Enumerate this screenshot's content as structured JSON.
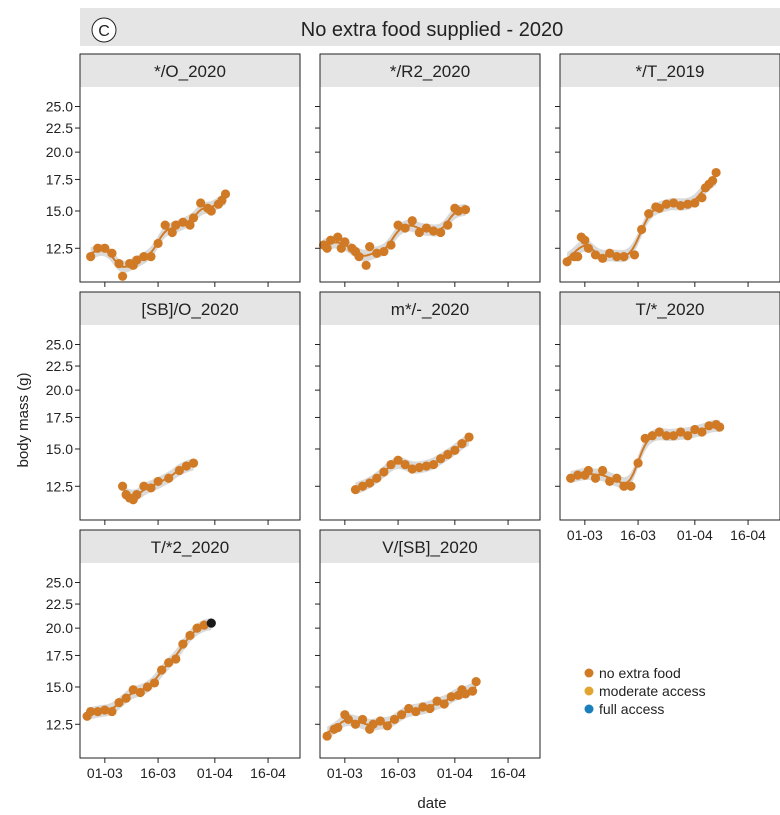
{
  "figure": {
    "panel_letter": "C",
    "title": "No extra food supplied - 2020",
    "xlabel": "date",
    "ylabel": "body mass (g)"
  },
  "legend": {
    "placement": "bottom-right",
    "entries": [
      {
        "label": "no extra food",
        "color": "#d07a26"
      },
      {
        "label": "moderate access",
        "color": "#e2a532"
      },
      {
        "label": "full access",
        "color": "#1b7fbd"
      }
    ]
  },
  "chart_data": {
    "type": "scatter",
    "x_axis": {
      "type": "date",
      "ticks": [
        "01-03",
        "16-03",
        "01-04",
        "16-04"
      ],
      "range": [
        "2020-02-23",
        "2020-04-25"
      ]
    },
    "y_axis": {
      "scale": "log",
      "range": [
        10.6,
        27.5
      ],
      "ticks": [
        12.5,
        15.0,
        17.5,
        20.0,
        22.5,
        25.0
      ],
      "tick_labels": [
        "12.5",
        "15.0",
        "17.5",
        "20.0",
        "22.5",
        "25.0"
      ]
    },
    "colors": {
      "points": "#d07a26",
      "smooth_line": "#d07a26",
      "ribbon": "#d3d3d3",
      "strip": "#e5e5e5",
      "highlight": "#1a1a1a"
    },
    "panels": [
      {
        "title": "*/O_2020",
        "points": [
          [
            "2020-02-26",
            12.0
          ],
          [
            "2020-02-28",
            12.5
          ],
          [
            "2020-03-01",
            12.5
          ],
          [
            "2020-03-03",
            12.2
          ],
          [
            "2020-03-05",
            11.6
          ],
          [
            "2020-03-06",
            10.9
          ],
          [
            "2020-03-08",
            11.6
          ],
          [
            "2020-03-09",
            11.5
          ],
          [
            "2020-03-10",
            11.8
          ],
          [
            "2020-03-12",
            12.0
          ],
          [
            "2020-03-14",
            12.0
          ],
          [
            "2020-03-16",
            12.8
          ],
          [
            "2020-03-18",
            14.0
          ],
          [
            "2020-03-20",
            13.5
          ],
          [
            "2020-03-21",
            14.0
          ],
          [
            "2020-03-23",
            14.2
          ],
          [
            "2020-03-25",
            14.0
          ],
          [
            "2020-03-26",
            14.5
          ],
          [
            "2020-03-28",
            15.6
          ],
          [
            "2020-03-30",
            15.2
          ],
          [
            "2020-03-31",
            15.0
          ],
          [
            "2020-04-02",
            15.5
          ],
          [
            "2020-04-03",
            15.8
          ],
          [
            "2020-04-04",
            16.3
          ]
        ]
      },
      {
        "title": "*/R2_2020",
        "points": [
          [
            "2020-02-24",
            12.7
          ],
          [
            "2020-02-25",
            12.5
          ],
          [
            "2020-02-26",
            13.0
          ],
          [
            "2020-02-28",
            13.2
          ],
          [
            "2020-02-29",
            12.5
          ],
          [
            "2020-03-01",
            12.9
          ],
          [
            "2020-03-03",
            12.5
          ],
          [
            "2020-03-04",
            12.3
          ],
          [
            "2020-03-05",
            12.0
          ],
          [
            "2020-03-07",
            11.5
          ],
          [
            "2020-03-08",
            12.6
          ],
          [
            "2020-03-10",
            12.2
          ],
          [
            "2020-03-12",
            12.3
          ],
          [
            "2020-03-14",
            12.7
          ],
          [
            "2020-03-16",
            14.0
          ],
          [
            "2020-03-18",
            13.8
          ],
          [
            "2020-03-20",
            14.3
          ],
          [
            "2020-03-22",
            13.5
          ],
          [
            "2020-03-24",
            13.8
          ],
          [
            "2020-03-26",
            13.6
          ],
          [
            "2020-03-28",
            13.5
          ],
          [
            "2020-03-30",
            14.0
          ],
          [
            "2020-04-01",
            15.2
          ],
          [
            "2020-04-02",
            15.0
          ],
          [
            "2020-04-04",
            15.1
          ]
        ]
      },
      {
        "title": "*/T_2019",
        "points": [
          [
            "2020-02-25",
            11.7
          ],
          [
            "2020-02-27",
            12.0
          ],
          [
            "2020-02-28",
            12.0
          ],
          [
            "2020-02-29",
            13.2
          ],
          [
            "2020-03-01",
            13.0
          ],
          [
            "2020-03-02",
            12.5
          ],
          [
            "2020-03-04",
            12.1
          ],
          [
            "2020-03-06",
            11.9
          ],
          [
            "2020-03-08",
            12.2
          ],
          [
            "2020-03-10",
            12.0
          ],
          [
            "2020-03-12",
            12.0
          ],
          [
            "2020-03-15",
            12.1
          ],
          [
            "2020-03-17",
            13.7
          ],
          [
            "2020-03-19",
            14.8
          ],
          [
            "2020-03-21",
            15.3
          ],
          [
            "2020-03-22",
            15.2
          ],
          [
            "2020-03-24",
            15.5
          ],
          [
            "2020-03-26",
            15.6
          ],
          [
            "2020-03-28",
            15.4
          ],
          [
            "2020-03-30",
            15.5
          ],
          [
            "2020-04-01",
            15.6
          ],
          [
            "2020-04-03",
            16.0
          ],
          [
            "2020-04-04",
            16.8
          ],
          [
            "2020-04-05",
            17.1
          ],
          [
            "2020-04-06",
            17.4
          ],
          [
            "2020-04-07",
            18.1
          ]
        ]
      },
      {
        "title": "[SB]/O_2020",
        "points": [
          [
            "2020-03-06",
            12.5
          ],
          [
            "2020-03-07",
            12.0
          ],
          [
            "2020-03-08",
            11.8
          ],
          [
            "2020-03-09",
            11.7
          ],
          [
            "2020-03-10",
            12.0
          ],
          [
            "2020-03-12",
            12.5
          ],
          [
            "2020-03-14",
            12.4
          ],
          [
            "2020-03-16",
            12.8
          ],
          [
            "2020-03-19",
            13.0
          ],
          [
            "2020-03-22",
            13.5
          ],
          [
            "2020-03-24",
            13.8
          ],
          [
            "2020-03-26",
            14.0
          ]
        ]
      },
      {
        "title": "m*/-_2020",
        "points": [
          [
            "2020-03-04",
            12.3
          ],
          [
            "2020-03-06",
            12.5
          ],
          [
            "2020-03-08",
            12.7
          ],
          [
            "2020-03-10",
            13.0
          ],
          [
            "2020-03-12",
            13.4
          ],
          [
            "2020-03-14",
            13.9
          ],
          [
            "2020-03-16",
            14.2
          ],
          [
            "2020-03-18",
            13.9
          ],
          [
            "2020-03-20",
            13.6
          ],
          [
            "2020-03-22",
            13.7
          ],
          [
            "2020-03-24",
            13.8
          ],
          [
            "2020-03-26",
            13.9
          ],
          [
            "2020-03-28",
            14.3
          ],
          [
            "2020-03-30",
            14.6
          ],
          [
            "2020-04-01",
            14.9
          ],
          [
            "2020-04-03",
            15.4
          ],
          [
            "2020-04-05",
            15.9
          ]
        ]
      },
      {
        "title": "T/*_2020",
        "points": [
          [
            "2020-02-26",
            13.0
          ],
          [
            "2020-02-28",
            13.2
          ],
          [
            "2020-03-01",
            13.2
          ],
          [
            "2020-03-02",
            13.5
          ],
          [
            "2020-03-04",
            13.0
          ],
          [
            "2020-03-06",
            13.5
          ],
          [
            "2020-03-08",
            12.8
          ],
          [
            "2020-03-10",
            13.0
          ],
          [
            "2020-03-12",
            12.5
          ],
          [
            "2020-03-14",
            12.5
          ],
          [
            "2020-03-16",
            14.0
          ],
          [
            "2020-03-18",
            15.8
          ],
          [
            "2020-03-20",
            16.0
          ],
          [
            "2020-03-22",
            16.3
          ],
          [
            "2020-03-24",
            16.0
          ],
          [
            "2020-03-26",
            16.0
          ],
          [
            "2020-03-28",
            16.3
          ],
          [
            "2020-03-30",
            16.0
          ],
          [
            "2020-04-01",
            16.5
          ],
          [
            "2020-04-03",
            16.3
          ],
          [
            "2020-04-05",
            16.8
          ],
          [
            "2020-04-07",
            16.9
          ],
          [
            "2020-04-08",
            16.7
          ]
        ]
      },
      {
        "title": "T/*2_2020",
        "highlight_last": true,
        "points": [
          [
            "2020-02-25",
            13.0
          ],
          [
            "2020-02-26",
            13.3
          ],
          [
            "2020-02-28",
            13.3
          ],
          [
            "2020-03-01",
            13.4
          ],
          [
            "2020-03-03",
            13.3
          ],
          [
            "2020-03-05",
            13.9
          ],
          [
            "2020-03-07",
            14.2
          ],
          [
            "2020-03-09",
            14.8
          ],
          [
            "2020-03-11",
            14.6
          ],
          [
            "2020-03-13",
            15.0
          ],
          [
            "2020-03-15",
            15.3
          ],
          [
            "2020-03-17",
            16.3
          ],
          [
            "2020-03-19",
            16.9
          ],
          [
            "2020-03-21",
            17.2
          ],
          [
            "2020-03-23",
            18.5
          ],
          [
            "2020-03-25",
            19.3
          ],
          [
            "2020-03-27",
            20.0
          ],
          [
            "2020-03-29",
            20.3
          ],
          [
            "2020-03-31",
            20.5
          ]
        ]
      },
      {
        "title": "V/[SB]_2020",
        "points": [
          [
            "2020-02-25",
            11.8
          ],
          [
            "2020-02-27",
            12.2
          ],
          [
            "2020-02-28",
            12.3
          ],
          [
            "2020-03-01",
            13.1
          ],
          [
            "2020-03-02",
            12.8
          ],
          [
            "2020-03-04",
            12.5
          ],
          [
            "2020-03-06",
            12.8
          ],
          [
            "2020-03-08",
            12.2
          ],
          [
            "2020-03-09",
            12.5
          ],
          [
            "2020-03-11",
            12.7
          ],
          [
            "2020-03-13",
            12.4
          ],
          [
            "2020-03-15",
            12.8
          ],
          [
            "2020-03-17",
            13.1
          ],
          [
            "2020-03-19",
            13.5
          ],
          [
            "2020-03-21",
            13.3
          ],
          [
            "2020-03-23",
            13.6
          ],
          [
            "2020-03-25",
            13.5
          ],
          [
            "2020-03-27",
            14.0
          ],
          [
            "2020-03-29",
            13.8
          ],
          [
            "2020-03-31",
            14.3
          ],
          [
            "2020-04-02",
            14.4
          ],
          [
            "2020-04-03",
            14.8
          ],
          [
            "2020-04-04",
            14.5
          ],
          [
            "2020-04-06",
            14.7
          ],
          [
            "2020-04-07",
            15.4
          ]
        ]
      }
    ]
  }
}
